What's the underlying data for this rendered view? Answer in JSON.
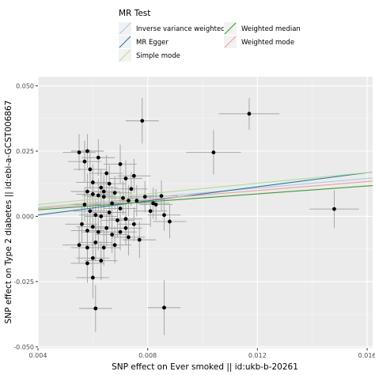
{
  "chart_data": {
    "type": "scatter",
    "xlabel": "SNP effect on Ever smoked || id:ukb-b-20261",
    "ylabel": "SNP effect on Type 2 diabetes || id:ebi-a-GCST006867",
    "xlim": [
      0.004,
      0.0162
    ],
    "ylim": [
      -0.0505,
      0.0535
    ],
    "x_ticks": [
      {
        "value": 0.004,
        "label": "0.004"
      },
      {
        "value": 0.008,
        "label": "0.008"
      },
      {
        "value": 0.012,
        "label": "0.012"
      },
      {
        "value": 0.016,
        "label": "0.016"
      }
    ],
    "y_ticks": [
      {
        "value": -0.05,
        "label": "-0.050"
      },
      {
        "value": -0.025,
        "label": "-0.025"
      },
      {
        "value": 0.0,
        "label": "0.000"
      },
      {
        "value": 0.025,
        "label": "0.025"
      },
      {
        "value": 0.05,
        "label": "0.050"
      }
    ],
    "grid": true,
    "legend": {
      "title": "MR Test",
      "placement": "top",
      "entries": [
        {
          "label": "Inverse variance weighted",
          "color": "#a6cee3"
        },
        {
          "label": "MR Egger",
          "color": "#1f78b4"
        },
        {
          "label": "Simple mode",
          "color": "#b2df8a"
        },
        {
          "label": "Weighted median",
          "color": "#33a02c"
        },
        {
          "label": "Weighted mode",
          "color": "#fb9a99"
        }
      ]
    },
    "lines": [
      {
        "name": "Inverse variance weighted",
        "color": "#a6cee3",
        "x": [
          0.004,
          0.0162
        ],
        "y": [
          0.0035,
          0.0147
        ]
      },
      {
        "name": "MR Egger",
        "color": "#1f78b4",
        "x": [
          0.004,
          0.0162
        ],
        "y": [
          0.0005,
          0.017
        ]
      },
      {
        "name": "Simple mode",
        "color": "#b2df8a",
        "x": [
          0.004,
          0.0162
        ],
        "y": [
          0.0045,
          0.017
        ]
      },
      {
        "name": "Weighted median",
        "color": "#33a02c",
        "x": [
          0.004,
          0.0162
        ],
        "y": [
          0.0025,
          0.0118
        ]
      },
      {
        "name": "Weighted mode",
        "color": "#fb9a99",
        "x": [
          0.004,
          0.0162
        ],
        "y": [
          0.003,
          0.0135
        ]
      }
    ],
    "points": [
      {
        "x": 0.0078,
        "y": 0.0366,
        "xerr": 0.0006,
        "yerr": 0.0087
      },
      {
        "x": 0.0117,
        "y": 0.0393,
        "xerr": 0.0011,
        "yerr": 0.0061
      },
      {
        "x": 0.0104,
        "y": 0.0245,
        "xerr": 0.001,
        "yerr": 0.0085
      },
      {
        "x": 0.0148,
        "y": 0.0028,
        "xerr": 0.0009,
        "yerr": 0.0072
      },
      {
        "x": 0.0086,
        "y": -0.035,
        "xerr": 0.0006,
        "yerr": 0.0105
      },
      {
        "x": 0.0061,
        "y": -0.0353,
        "xerr": 0.0006,
        "yerr": 0.009
      },
      {
        "x": 0.0055,
        "y": 0.0245,
        "xerr": 0.0006,
        "yerr": 0.007
      },
      {
        "x": 0.0058,
        "y": 0.025,
        "xerr": 0.0006,
        "yerr": 0.0065
      },
      {
        "x": 0.0057,
        "y": 0.021,
        "xerr": 0.0006,
        "yerr": 0.008
      },
      {
        "x": 0.0062,
        "y": 0.0225,
        "xerr": 0.0006,
        "yerr": 0.007
      },
      {
        "x": 0.0059,
        "y": 0.018,
        "xerr": 0.0006,
        "yerr": 0.0075
      },
      {
        "x": 0.0065,
        "y": 0.0165,
        "xerr": 0.0006,
        "yerr": 0.007
      },
      {
        "x": 0.007,
        "y": 0.02,
        "xerr": 0.0006,
        "yerr": 0.0075
      },
      {
        "x": 0.0072,
        "y": 0.0145,
        "xerr": 0.0006,
        "yerr": 0.007
      },
      {
        "x": 0.0075,
        "y": 0.0155,
        "xerr": 0.0006,
        "yerr": 0.0065
      },
      {
        "x": 0.0074,
        "y": 0.0105,
        "xerr": 0.0006,
        "yerr": 0.0065
      },
      {
        "x": 0.006,
        "y": 0.013,
        "xerr": 0.0006,
        "yerr": 0.007
      },
      {
        "x": 0.0063,
        "y": 0.011,
        "xerr": 0.0006,
        "yerr": 0.007
      },
      {
        "x": 0.0066,
        "y": 0.0125,
        "xerr": 0.0006,
        "yerr": 0.007
      },
      {
        "x": 0.0058,
        "y": 0.0095,
        "xerr": 0.0006,
        "yerr": 0.007
      },
      {
        "x": 0.006,
        "y": 0.0085,
        "xerr": 0.0006,
        "yerr": 0.0065
      },
      {
        "x": 0.0062,
        "y": 0.008,
        "xerr": 0.0006,
        "yerr": 0.0065
      },
      {
        "x": 0.0064,
        "y": 0.0075,
        "xerr": 0.0006,
        "yerr": 0.0065
      },
      {
        "x": 0.0068,
        "y": 0.009,
        "xerr": 0.0006,
        "yerr": 0.0065
      },
      {
        "x": 0.0071,
        "y": 0.007,
        "xerr": 0.0006,
        "yerr": 0.0065
      },
      {
        "x": 0.0073,
        "y": 0.006,
        "xerr": 0.0006,
        "yerr": 0.006
      },
      {
        "x": 0.0076,
        "y": 0.006,
        "xerr": 0.0006,
        "yerr": 0.006
      },
      {
        "x": 0.0079,
        "y": 0.0075,
        "xerr": 0.0006,
        "yerr": 0.006
      },
      {
        "x": 0.0082,
        "y": 0.005,
        "xerr": 0.0006,
        "yerr": 0.006
      },
      {
        "x": 0.0085,
        "y": 0.0078,
        "xerr": 0.0006,
        "yerr": 0.006
      },
      {
        "x": 0.0083,
        "y": 0.0045,
        "xerr": 0.0006,
        "yerr": 0.006
      },
      {
        "x": 0.0057,
        "y": 0.0045,
        "xerr": 0.0006,
        "yerr": 0.0065
      },
      {
        "x": 0.0059,
        "y": 0.002,
        "xerr": 0.0006,
        "yerr": 0.0065
      },
      {
        "x": 0.0061,
        "y": 0.0005,
        "xerr": 0.0006,
        "yerr": 0.0065
      },
      {
        "x": 0.0063,
        "y": 0.0,
        "xerr": 0.0006,
        "yerr": 0.0065
      },
      {
        "x": 0.0066,
        "y": 0.0015,
        "xerr": 0.0006,
        "yerr": 0.0065
      },
      {
        "x": 0.0069,
        "y": -0.0015,
        "xerr": 0.0006,
        "yerr": 0.0065
      },
      {
        "x": 0.0072,
        "y": -0.001,
        "xerr": 0.0006,
        "yerr": 0.0065
      },
      {
        "x": 0.0075,
        "y": -0.003,
        "xerr": 0.0006,
        "yerr": 0.0065
      },
      {
        "x": 0.0086,
        "y": 0.0005,
        "xerr": 0.0006,
        "yerr": 0.006
      },
      {
        "x": 0.0088,
        "y": -0.002,
        "xerr": 0.0006,
        "yerr": 0.0065
      },
      {
        "x": 0.0056,
        "y": -0.003,
        "xerr": 0.0006,
        "yerr": 0.007
      },
      {
        "x": 0.0058,
        "y": -0.0055,
        "xerr": 0.0006,
        "yerr": 0.007
      },
      {
        "x": 0.006,
        "y": -0.004,
        "xerr": 0.0006,
        "yerr": 0.007
      },
      {
        "x": 0.0062,
        "y": -0.006,
        "xerr": 0.0006,
        "yerr": 0.007
      },
      {
        "x": 0.0065,
        "y": -0.0045,
        "xerr": 0.0006,
        "yerr": 0.007
      },
      {
        "x": 0.0067,
        "y": -0.007,
        "xerr": 0.0006,
        "yerr": 0.007
      },
      {
        "x": 0.007,
        "y": -0.006,
        "xerr": 0.0006,
        "yerr": 0.007
      },
      {
        "x": 0.0073,
        "y": -0.008,
        "xerr": 0.0006,
        "yerr": 0.007
      },
      {
        "x": 0.0077,
        "y": -0.009,
        "xerr": 0.0006,
        "yerr": 0.007
      },
      {
        "x": 0.0055,
        "y": -0.011,
        "xerr": 0.0006,
        "yerr": 0.007
      },
      {
        "x": 0.0058,
        "y": -0.012,
        "xerr": 0.0006,
        "yerr": 0.007
      },
      {
        "x": 0.0061,
        "y": -0.01,
        "xerr": 0.0006,
        "yerr": 0.007
      },
      {
        "x": 0.0064,
        "y": -0.012,
        "xerr": 0.0006,
        "yerr": 0.007
      },
      {
        "x": 0.0068,
        "y": -0.011,
        "xerr": 0.0006,
        "yerr": 0.007
      },
      {
        "x": 0.0058,
        "y": -0.018,
        "xerr": 0.0006,
        "yerr": 0.0075
      },
      {
        "x": 0.006,
        "y": -0.016,
        "xerr": 0.0006,
        "yerr": 0.0075
      },
      {
        "x": 0.0063,
        "y": -0.017,
        "xerr": 0.0006,
        "yerr": 0.0075
      },
      {
        "x": 0.006,
        "y": -0.0235,
        "xerr": 0.0006,
        "yerr": 0.008
      },
      {
        "x": 0.0072,
        "y": -0.0045,
        "xerr": 0.0006,
        "yerr": 0.0065
      },
      {
        "x": 0.0081,
        "y": 0.002,
        "xerr": 0.0006,
        "yerr": 0.006
      },
      {
        "x": 0.0067,
        "y": 0.005,
        "xerr": 0.0006,
        "yerr": 0.0065
      },
      {
        "x": 0.007,
        "y": 0.003,
        "xerr": 0.0006,
        "yerr": 0.0065
      },
      {
        "x": 0.0064,
        "y": 0.0095,
        "xerr": 0.0006,
        "yerr": 0.0065
      }
    ]
  }
}
